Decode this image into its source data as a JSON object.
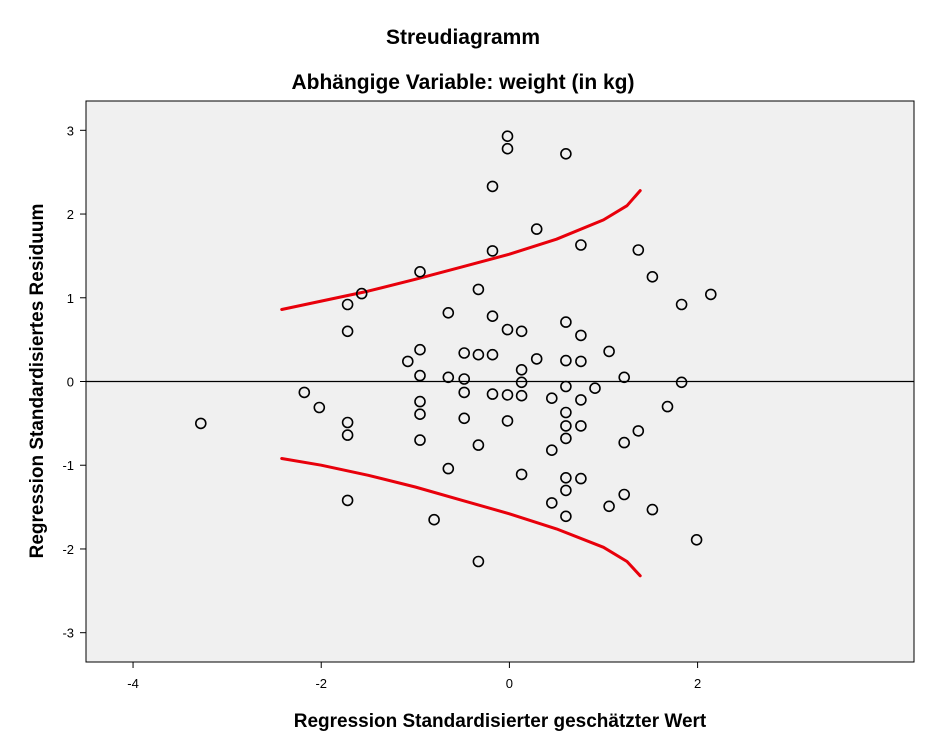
{
  "chart_data": {
    "type": "scatter",
    "title": "Streudiagramm",
    "subtitle": "Abhängige Variable: weight (in kg)",
    "xlabel": "Regression Standardisierter geschätzter Wert",
    "ylabel": "Regression Standardisiertes Residuum",
    "xlim": [
      -4.5,
      4.3
    ],
    "ylim": [
      -3.35,
      3.35
    ],
    "xticks": [
      -4,
      -2,
      0,
      2
    ],
    "yticks": [
      3,
      2,
      1,
      0,
      -1,
      -2,
      -3
    ],
    "xtick_labels": [
      "-4",
      "-2",
      "0",
      "2"
    ],
    "ytick_labels": [
      "3",
      "2",
      "1",
      "0",
      "-1",
      "-2",
      "-3"
    ],
    "grid": false,
    "legend": "none",
    "reference_line_y": 0,
    "colors": {
      "plot_background": "#f0f0f0",
      "marker_stroke": "#000000",
      "curve": "#e8000b"
    },
    "points": [
      [
        -3.28,
        -0.5
      ],
      [
        -2.18,
        -0.13
      ],
      [
        -2.02,
        -0.31
      ],
      [
        -1.72,
        0.92
      ],
      [
        -1.72,
        0.6
      ],
      [
        -1.72,
        -0.49
      ],
      [
        -1.72,
        -0.64
      ],
      [
        -1.72,
        -1.42
      ],
      [
        -1.57,
        1.05
      ],
      [
        -1.08,
        0.24
      ],
      [
        -0.95,
        1.31
      ],
      [
        -0.95,
        0.38
      ],
      [
        -0.95,
        0.07
      ],
      [
        -0.95,
        -0.24
      ],
      [
        -0.95,
        -0.39
      ],
      [
        -0.95,
        -0.7
      ],
      [
        -0.8,
        -1.65
      ],
      [
        -0.65,
        0.82
      ],
      [
        -0.65,
        0.05
      ],
      [
        -0.65,
        -1.04
      ],
      [
        -0.48,
        0.34
      ],
      [
        -0.48,
        0.03
      ],
      [
        -0.48,
        -0.13
      ],
      [
        -0.48,
        -0.44
      ],
      [
        -0.33,
        1.1
      ],
      [
        -0.33,
        0.32
      ],
      [
        -0.33,
        -0.76
      ],
      [
        -0.33,
        -2.15
      ],
      [
        -0.18,
        2.33
      ],
      [
        -0.18,
        1.56
      ],
      [
        -0.18,
        0.78
      ],
      [
        -0.18,
        0.32
      ],
      [
        -0.18,
        -0.15
      ],
      [
        -0.02,
        2.93
      ],
      [
        -0.02,
        2.78
      ],
      [
        -0.02,
        0.62
      ],
      [
        -0.02,
        -0.16
      ],
      [
        -0.02,
        -0.47
      ],
      [
        0.13,
        0.6
      ],
      [
        0.13,
        0.14
      ],
      [
        0.13,
        -0.01
      ],
      [
        0.13,
        -0.17
      ],
      [
        0.13,
        -1.11
      ],
      [
        0.29,
        1.82
      ],
      [
        0.29,
        0.27
      ],
      [
        0.45,
        -0.2
      ],
      [
        0.45,
        -0.82
      ],
      [
        0.45,
        -1.45
      ],
      [
        0.6,
        2.72
      ],
      [
        0.6,
        0.71
      ],
      [
        0.6,
        0.25
      ],
      [
        0.6,
        -0.06
      ],
      [
        0.6,
        -0.37
      ],
      [
        0.6,
        -0.53
      ],
      [
        0.6,
        -0.68
      ],
      [
        0.6,
        -1.15
      ],
      [
        0.6,
        -1.3
      ],
      [
        0.6,
        -1.61
      ],
      [
        0.76,
        1.63
      ],
      [
        0.76,
        0.55
      ],
      [
        0.76,
        0.24
      ],
      [
        0.76,
        -0.22
      ],
      [
        0.76,
        -0.53
      ],
      [
        0.76,
        -1.16
      ],
      [
        0.91,
        -0.08
      ],
      [
        1.06,
        0.36
      ],
      [
        1.06,
        -1.49
      ],
      [
        1.22,
        0.05
      ],
      [
        1.22,
        -0.73
      ],
      [
        1.22,
        -1.35
      ],
      [
        1.37,
        1.57
      ],
      [
        1.37,
        -0.59
      ],
      [
        1.52,
        1.25
      ],
      [
        1.52,
        -1.53
      ],
      [
        1.68,
        -0.3
      ],
      [
        1.83,
        0.92
      ],
      [
        1.83,
        -0.01
      ],
      [
        1.99,
        -1.89
      ],
      [
        2.14,
        1.04
      ]
    ],
    "upper_curve": [
      [
        -2.42,
        0.86
      ],
      [
        -2.0,
        0.96
      ],
      [
        -1.5,
        1.08
      ],
      [
        -1.0,
        1.22
      ],
      [
        -0.5,
        1.37
      ],
      [
        0.0,
        1.52
      ],
      [
        0.5,
        1.7
      ],
      [
        1.0,
        1.93
      ],
      [
        1.25,
        2.1
      ],
      [
        1.39,
        2.28
      ]
    ],
    "lower_curve": [
      [
        -2.42,
        -0.92
      ],
      [
        -2.0,
        -1.0
      ],
      [
        -1.5,
        -1.12
      ],
      [
        -1.0,
        -1.26
      ],
      [
        -0.5,
        -1.42
      ],
      [
        0.0,
        -1.58
      ],
      [
        0.5,
        -1.76
      ],
      [
        1.0,
        -1.98
      ],
      [
        1.25,
        -2.15
      ],
      [
        1.39,
        -2.32
      ]
    ]
  }
}
